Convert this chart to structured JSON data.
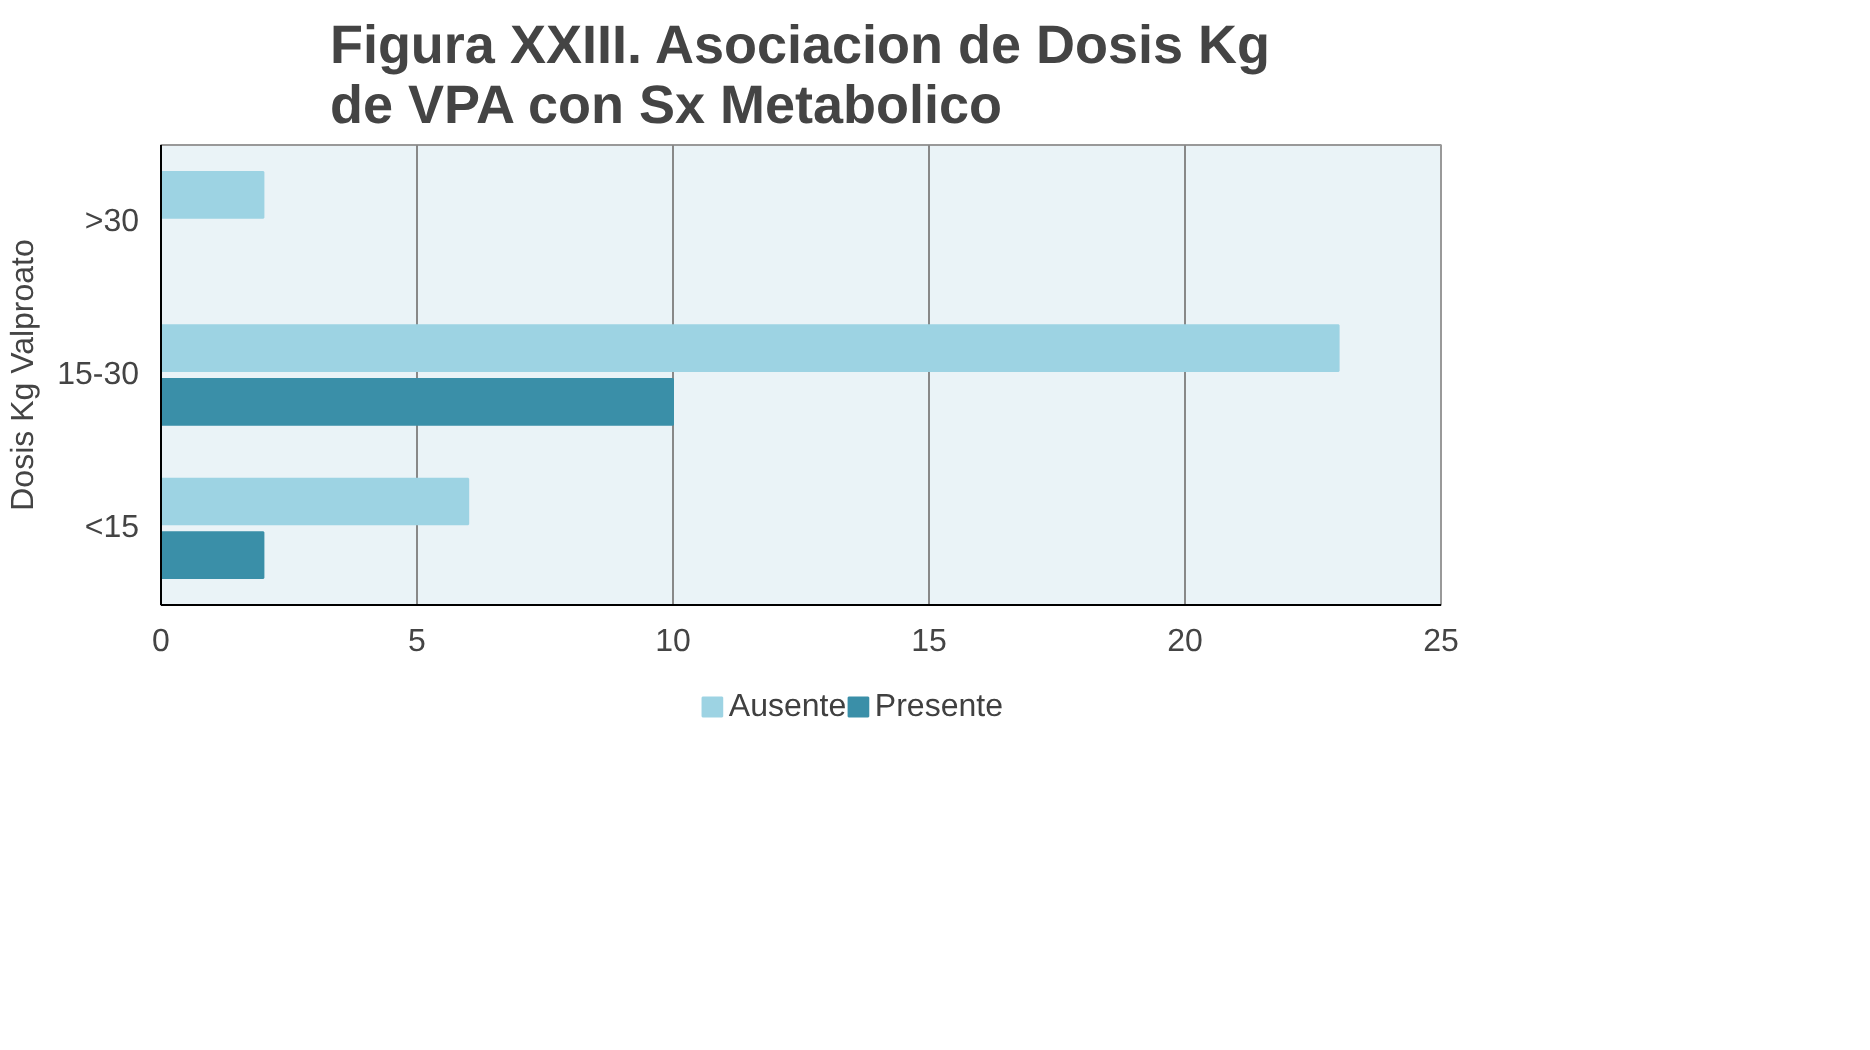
{
  "chart_data": {
    "type": "bar",
    "orientation": "horizontal",
    "title": "Figura XXIII. Asociacion de Dosis Kg de VPA con Sx Metabolico",
    "ylabel": "Dosis Kg Valproato",
    "categories": [
      ">30",
      "15-30",
      "<15"
    ],
    "series": [
      {
        "name": "Ausente",
        "color": "#9dd3e3",
        "values": [
          2,
          23,
          6
        ]
      },
      {
        "name": "Presente",
        "color": "#3a8fa8",
        "values": [
          0,
          10,
          2
        ]
      }
    ],
    "xlim": [
      0,
      25
    ],
    "xticks": [
      0,
      5,
      10,
      15,
      20,
      25
    ],
    "grid": "x",
    "legend": "bottom"
  }
}
